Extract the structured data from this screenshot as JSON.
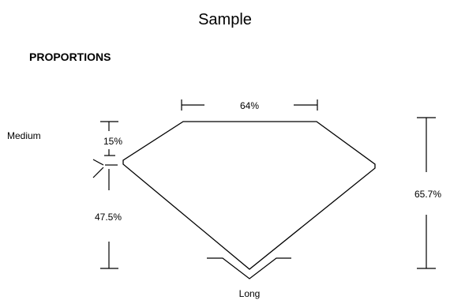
{
  "page": {
    "title": "Sample"
  },
  "proportions": {
    "heading": "PROPORTIONS",
    "girdle_thickness": "Medium",
    "culet_size": "Long",
    "table_percent": "64%",
    "crown_height_percent": "15%",
    "pavilion_depth_percent": "47.5%",
    "total_depth_percent": "65.7%"
  }
}
